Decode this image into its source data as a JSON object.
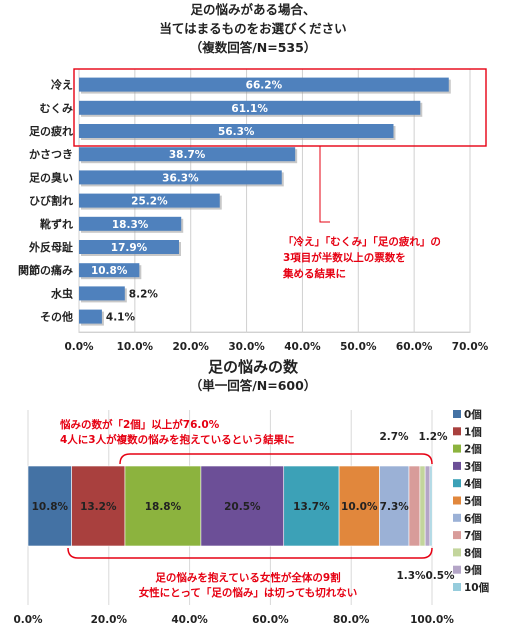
{
  "charts": [
    {
      "title_lines": [
        "足の悩みがある場合、",
        "当てはまるものをお選びください",
        "（複数回答/N=535）"
      ],
      "chart_data": {
        "type": "bar",
        "orientation": "horizontal",
        "categories": [
          "冷え",
          "むくみ",
          "足の疲れ",
          "かさつき",
          "足の臭い",
          "ひび割れ",
          "靴ずれ",
          "外反母趾",
          "関節の痛み",
          "水虫",
          "その他"
        ],
        "values": [
          66.2,
          61.1,
          56.3,
          38.7,
          36.3,
          25.2,
          18.3,
          17.9,
          10.8,
          8.2,
          4.1
        ],
        "value_labels": [
          "66.2%",
          "61.1%",
          "56.3%",
          "38.7%",
          "36.3%",
          "25.2%",
          "18.3%",
          "17.9%",
          "10.8%",
          "8.2%",
          "4.1%"
        ],
        "xlim": [
          0,
          70
        ],
        "ticks": [
          "0.0%",
          "10.0%",
          "20.0%",
          "30.0%",
          "40.0%",
          "50.0%",
          "60.0%",
          "70.0%"
        ],
        "bar_color": "#4f81bd",
        "grid": true
      },
      "annotation": {
        "lines": [
          "「冷え」「むくみ」「足の疲れ」の",
          "3項目が半数以上の票数を",
          "集める結果に"
        ],
        "color": "#e60012",
        "highlighted_categories": [
          "冷え",
          "むくみ",
          "足の疲れ"
        ]
      }
    },
    {
      "title": "足の悩みの数",
      "subtitle": "（単一回答/N=600）",
      "chart_data": {
        "type": "bar",
        "stacked": "100%",
        "orientation": "horizontal",
        "series": [
          {
            "name": "0個",
            "value": 10.8,
            "label": "10.8%",
            "color": "#4472a4"
          },
          {
            "name": "1個",
            "value": 13.2,
            "label": "13.2%",
            "color": "#a9403e"
          },
          {
            "name": "2個",
            "value": 18.8,
            "label": "18.8%",
            "color": "#8cb33e"
          },
          {
            "name": "3個",
            "value": 20.5,
            "label": "20.5%",
            "color": "#6c4f97"
          },
          {
            "name": "4個",
            "value": 13.7,
            "label": "13.7%",
            "color": "#3ca1b7"
          },
          {
            "name": "5個",
            "value": 10.0,
            "label": "10.0%",
            "color": "#e1873c"
          },
          {
            "name": "6個",
            "value": 7.3,
            "label": "7.3%",
            "color": "#9bb1d6"
          },
          {
            "name": "7個",
            "value": 2.7,
            "label": "2.7%",
            "color": "#d89c9a"
          },
          {
            "name": "8個",
            "value": 1.3,
            "label": "1.3%",
            "color": "#c3d59c"
          },
          {
            "name": "9個",
            "value": 1.2,
            "label": "1.2%",
            "color": "#b4a5c7"
          },
          {
            "name": "10個",
            "value": 0.5,
            "label": "0.5%",
            "color": "#96ccdc"
          }
        ],
        "xlim": [
          0,
          100
        ],
        "ticks": [
          "0.0%",
          "20.0%",
          "40.0%",
          "60.0%",
          "80.0%",
          "100.0%"
        ],
        "legend_position": "right"
      },
      "annotation_top": {
        "lines": [
          "悩みの数が「2個」以上が76.0%",
          "4人に3人が複数の悩みを抱えているという結果に"
        ],
        "color": "#e60012"
      },
      "annotation_bottom": {
        "lines": [
          "足の悩みを抱えている女性が全体の9割",
          "女性にとって「足の悩み」は切っても切れない"
        ],
        "color": "#e60012"
      }
    }
  ]
}
